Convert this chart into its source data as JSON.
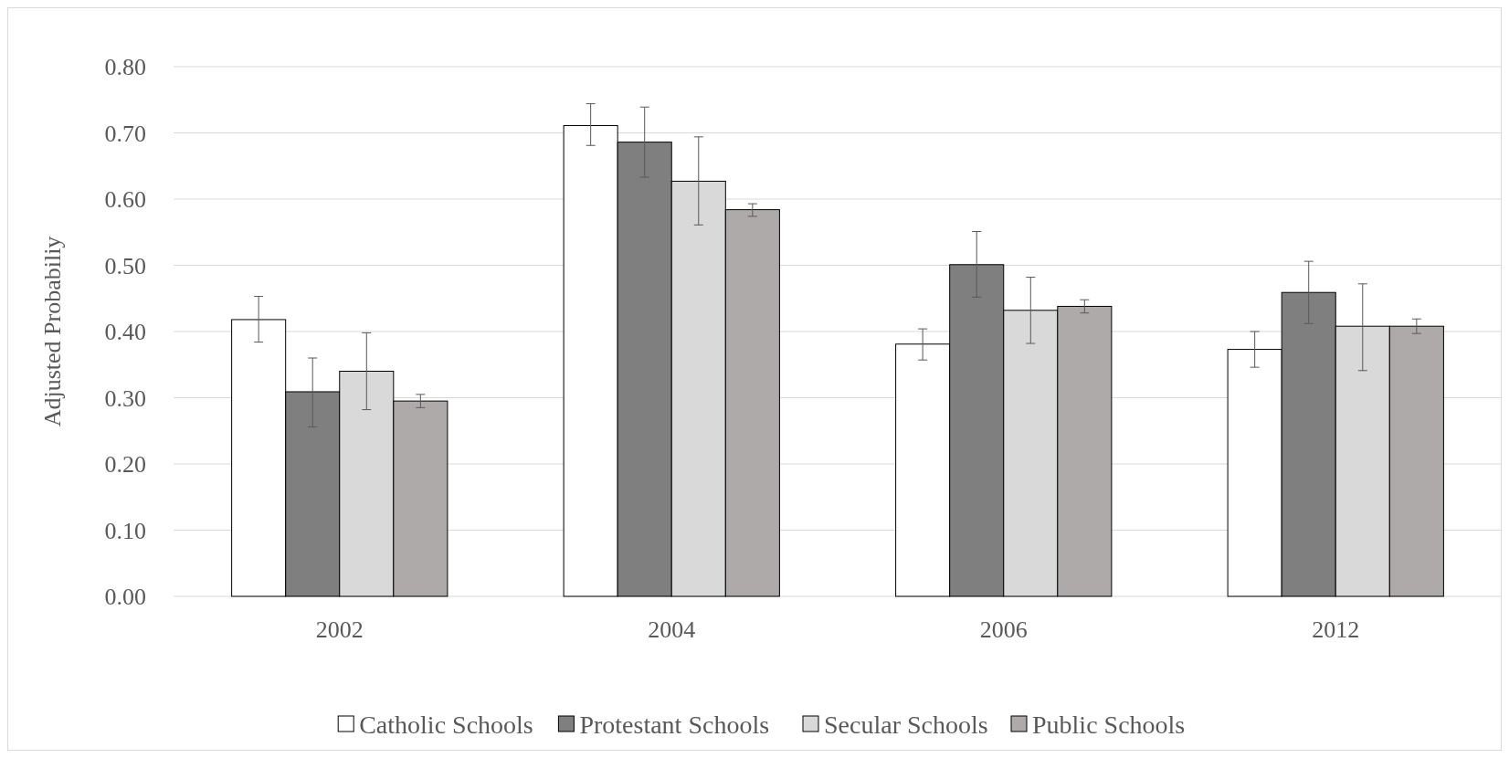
{
  "chart_data": {
    "type": "bar",
    "ylabel": "Adjusted Probabiliy",
    "categories": [
      "2002",
      "2004",
      "2006",
      "2012"
    ],
    "series": [
      {
        "name": "Catholic Schools",
        "color": "#ffffff",
        "values": [
          0.418,
          0.711,
          0.381,
          0.373
        ],
        "errors": [
          [
            0.384,
            0.453
          ],
          [
            0.681,
            0.744
          ],
          [
            0.357,
            0.404
          ],
          [
            0.346,
            0.4
          ]
        ]
      },
      {
        "name": "Protestant Schools",
        "color": "#7f7f7f",
        "values": [
          0.309,
          0.686,
          0.501,
          0.459
        ],
        "errors": [
          [
            0.256,
            0.36
          ],
          [
            0.633,
            0.739
          ],
          [
            0.452,
            0.551
          ],
          [
            0.412,
            0.506
          ]
        ]
      },
      {
        "name": "Secular Schools",
        "color": "#d9d9d9",
        "values": [
          0.34,
          0.627,
          0.432,
          0.408
        ],
        "errors": [
          [
            0.282,
            0.398
          ],
          [
            0.561,
            0.694
          ],
          [
            0.382,
            0.482
          ],
          [
            0.341,
            0.472
          ]
        ]
      },
      {
        "name": "Public Schools",
        "color": "#aeaaaa",
        "values": [
          0.295,
          0.584,
          0.438,
          0.408
        ],
        "errors": [
          [
            0.285,
            0.305
          ],
          [
            0.574,
            0.593
          ],
          [
            0.428,
            0.448
          ],
          [
            0.397,
            0.419
          ]
        ]
      }
    ],
    "ylim": [
      0,
      0.8
    ],
    "yticks": [
      {
        "value": 0,
        "label": "0.00"
      },
      {
        "value": 0.1,
        "label": "0.10"
      },
      {
        "value": 0.2,
        "label": "0.20"
      },
      {
        "value": 0.3,
        "label": "0.30"
      },
      {
        "value": 0.4,
        "label": "0.40"
      },
      {
        "value": 0.5,
        "label": "0.50"
      },
      {
        "value": 0.6,
        "label": "0.60"
      },
      {
        "value": 0.7,
        "label": "0.70"
      },
      {
        "value": 0.8,
        "label": "0.80"
      }
    ],
    "grid": "y",
    "legend": "bottom"
  }
}
